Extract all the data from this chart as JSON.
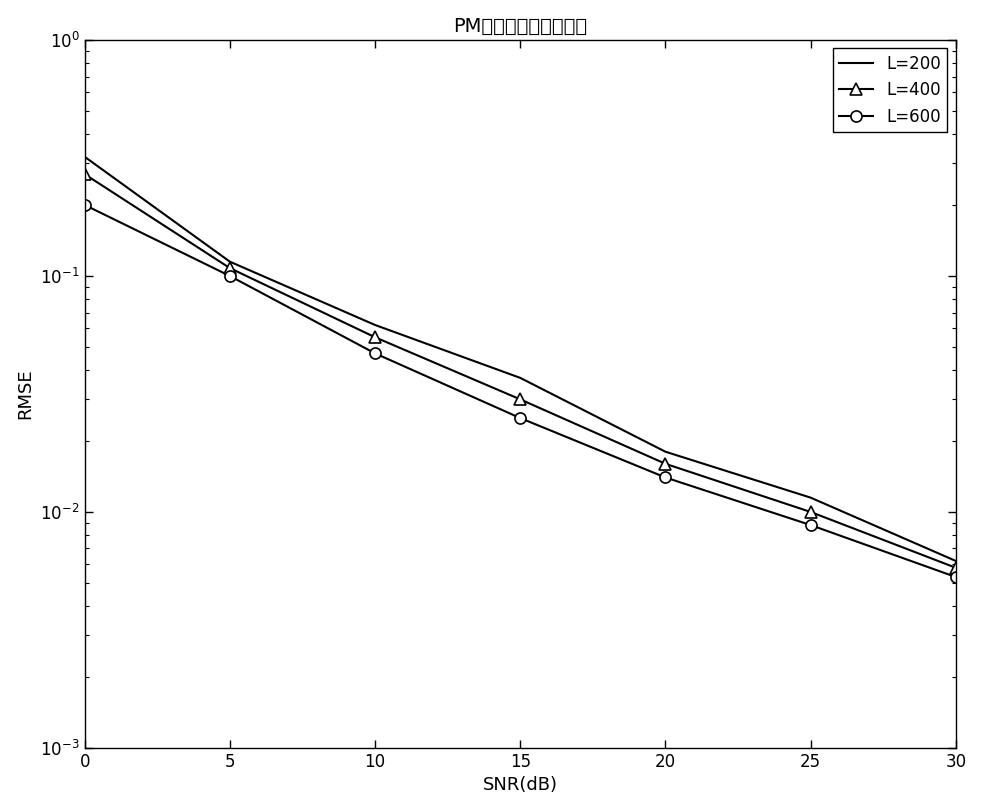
{
  "title": "PM算法不同快拍数对比",
  "xlabel": "SNR(dB)",
  "ylabel": "RMSE",
  "snr": [
    0,
    5,
    10,
    15,
    20,
    25,
    30
  ],
  "L200": [
    0.32,
    0.115,
    0.062,
    0.037,
    0.018,
    0.0115,
    0.0062
  ],
  "L400": [
    0.27,
    0.108,
    0.055,
    0.03,
    0.016,
    0.01,
    0.0058
  ],
  "L600": [
    0.2,
    0.1,
    0.047,
    0.025,
    0.014,
    0.0088,
    0.0053
  ],
  "ylim_min": 0.001,
  "ylim_max": 1.0,
  "xlim_min": 0,
  "xlim_max": 30,
  "legend_L200": "L=200",
  "legend_L400": "L=400",
  "legend_L600": "L=600",
  "line_color": "#000000",
  "bg_color": "#ffffff",
  "title_fontsize": 14,
  "label_fontsize": 13,
  "legend_fontsize": 12,
  "tick_fontsize": 12
}
